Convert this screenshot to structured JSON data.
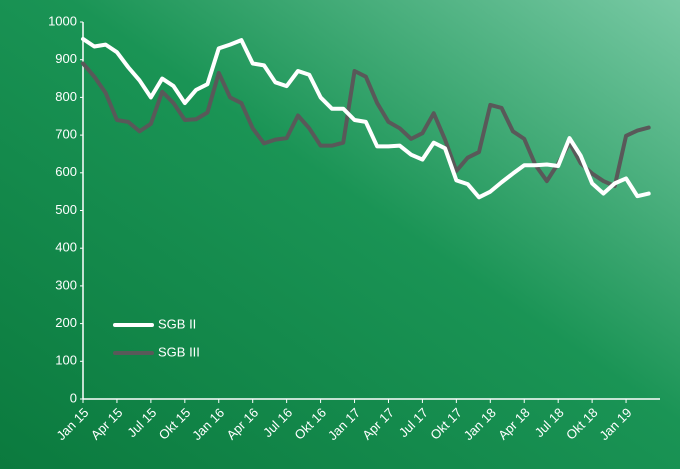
{
  "chart_data": {
    "type": "line",
    "categories": [
      "Jan 15",
      null,
      null,
      "Apr 15",
      null,
      null,
      "Jul 15",
      null,
      null,
      "Okt 15",
      null,
      null,
      "Jan 16",
      null,
      null,
      "Apr 16",
      null,
      null,
      "Jul 16",
      null,
      null,
      "Okt 16",
      null,
      null,
      "Jan 17",
      null,
      null,
      "Apr 17",
      null,
      null,
      "Jul 17",
      null,
      null,
      "Okt 17",
      null,
      null,
      "Jan 18",
      null,
      null,
      "Apr 18",
      null,
      null,
      "Jul 18",
      null,
      null,
      "Okt 18",
      null,
      null,
      "Jan 19",
      null,
      null
    ],
    "series": [
      {
        "name": "SGB II",
        "color": "#ffffff",
        "values": [
          955,
          935,
          940,
          920,
          880,
          845,
          800,
          850,
          830,
          785,
          820,
          835,
          930,
          940,
          952,
          890,
          885,
          840,
          830,
          870,
          860,
          800,
          770,
          770,
          740,
          735,
          670,
          670,
          672,
          648,
          635,
          680,
          665,
          580,
          570,
          535,
          550,
          575,
          598,
          620,
          620,
          622,
          618,
          692,
          645,
          572,
          545,
          572,
          585,
          538,
          545
        ]
      },
      {
        "name": "SGB III",
        "color": "#595959",
        "values": [
          890,
          855,
          812,
          740,
          735,
          710,
          730,
          815,
          785,
          740,
          742,
          760,
          865,
          800,
          785,
          718,
          678,
          688,
          692,
          752,
          718,
          672,
          672,
          680,
          870,
          855,
          785,
          735,
          718,
          690,
          705,
          758,
          688,
          605,
          640,
          655,
          780,
          772,
          710,
          690,
          620,
          578,
          625,
          680,
          625,
          598,
          578,
          565,
          698,
          712,
          720
        ]
      }
    ],
    "ylim": [
      0,
      1000
    ],
    "yticks": [
      0,
      100,
      200,
      300,
      400,
      500,
      600,
      700,
      800,
      900,
      1000
    ],
    "grid": false,
    "legend": "lower left"
  }
}
